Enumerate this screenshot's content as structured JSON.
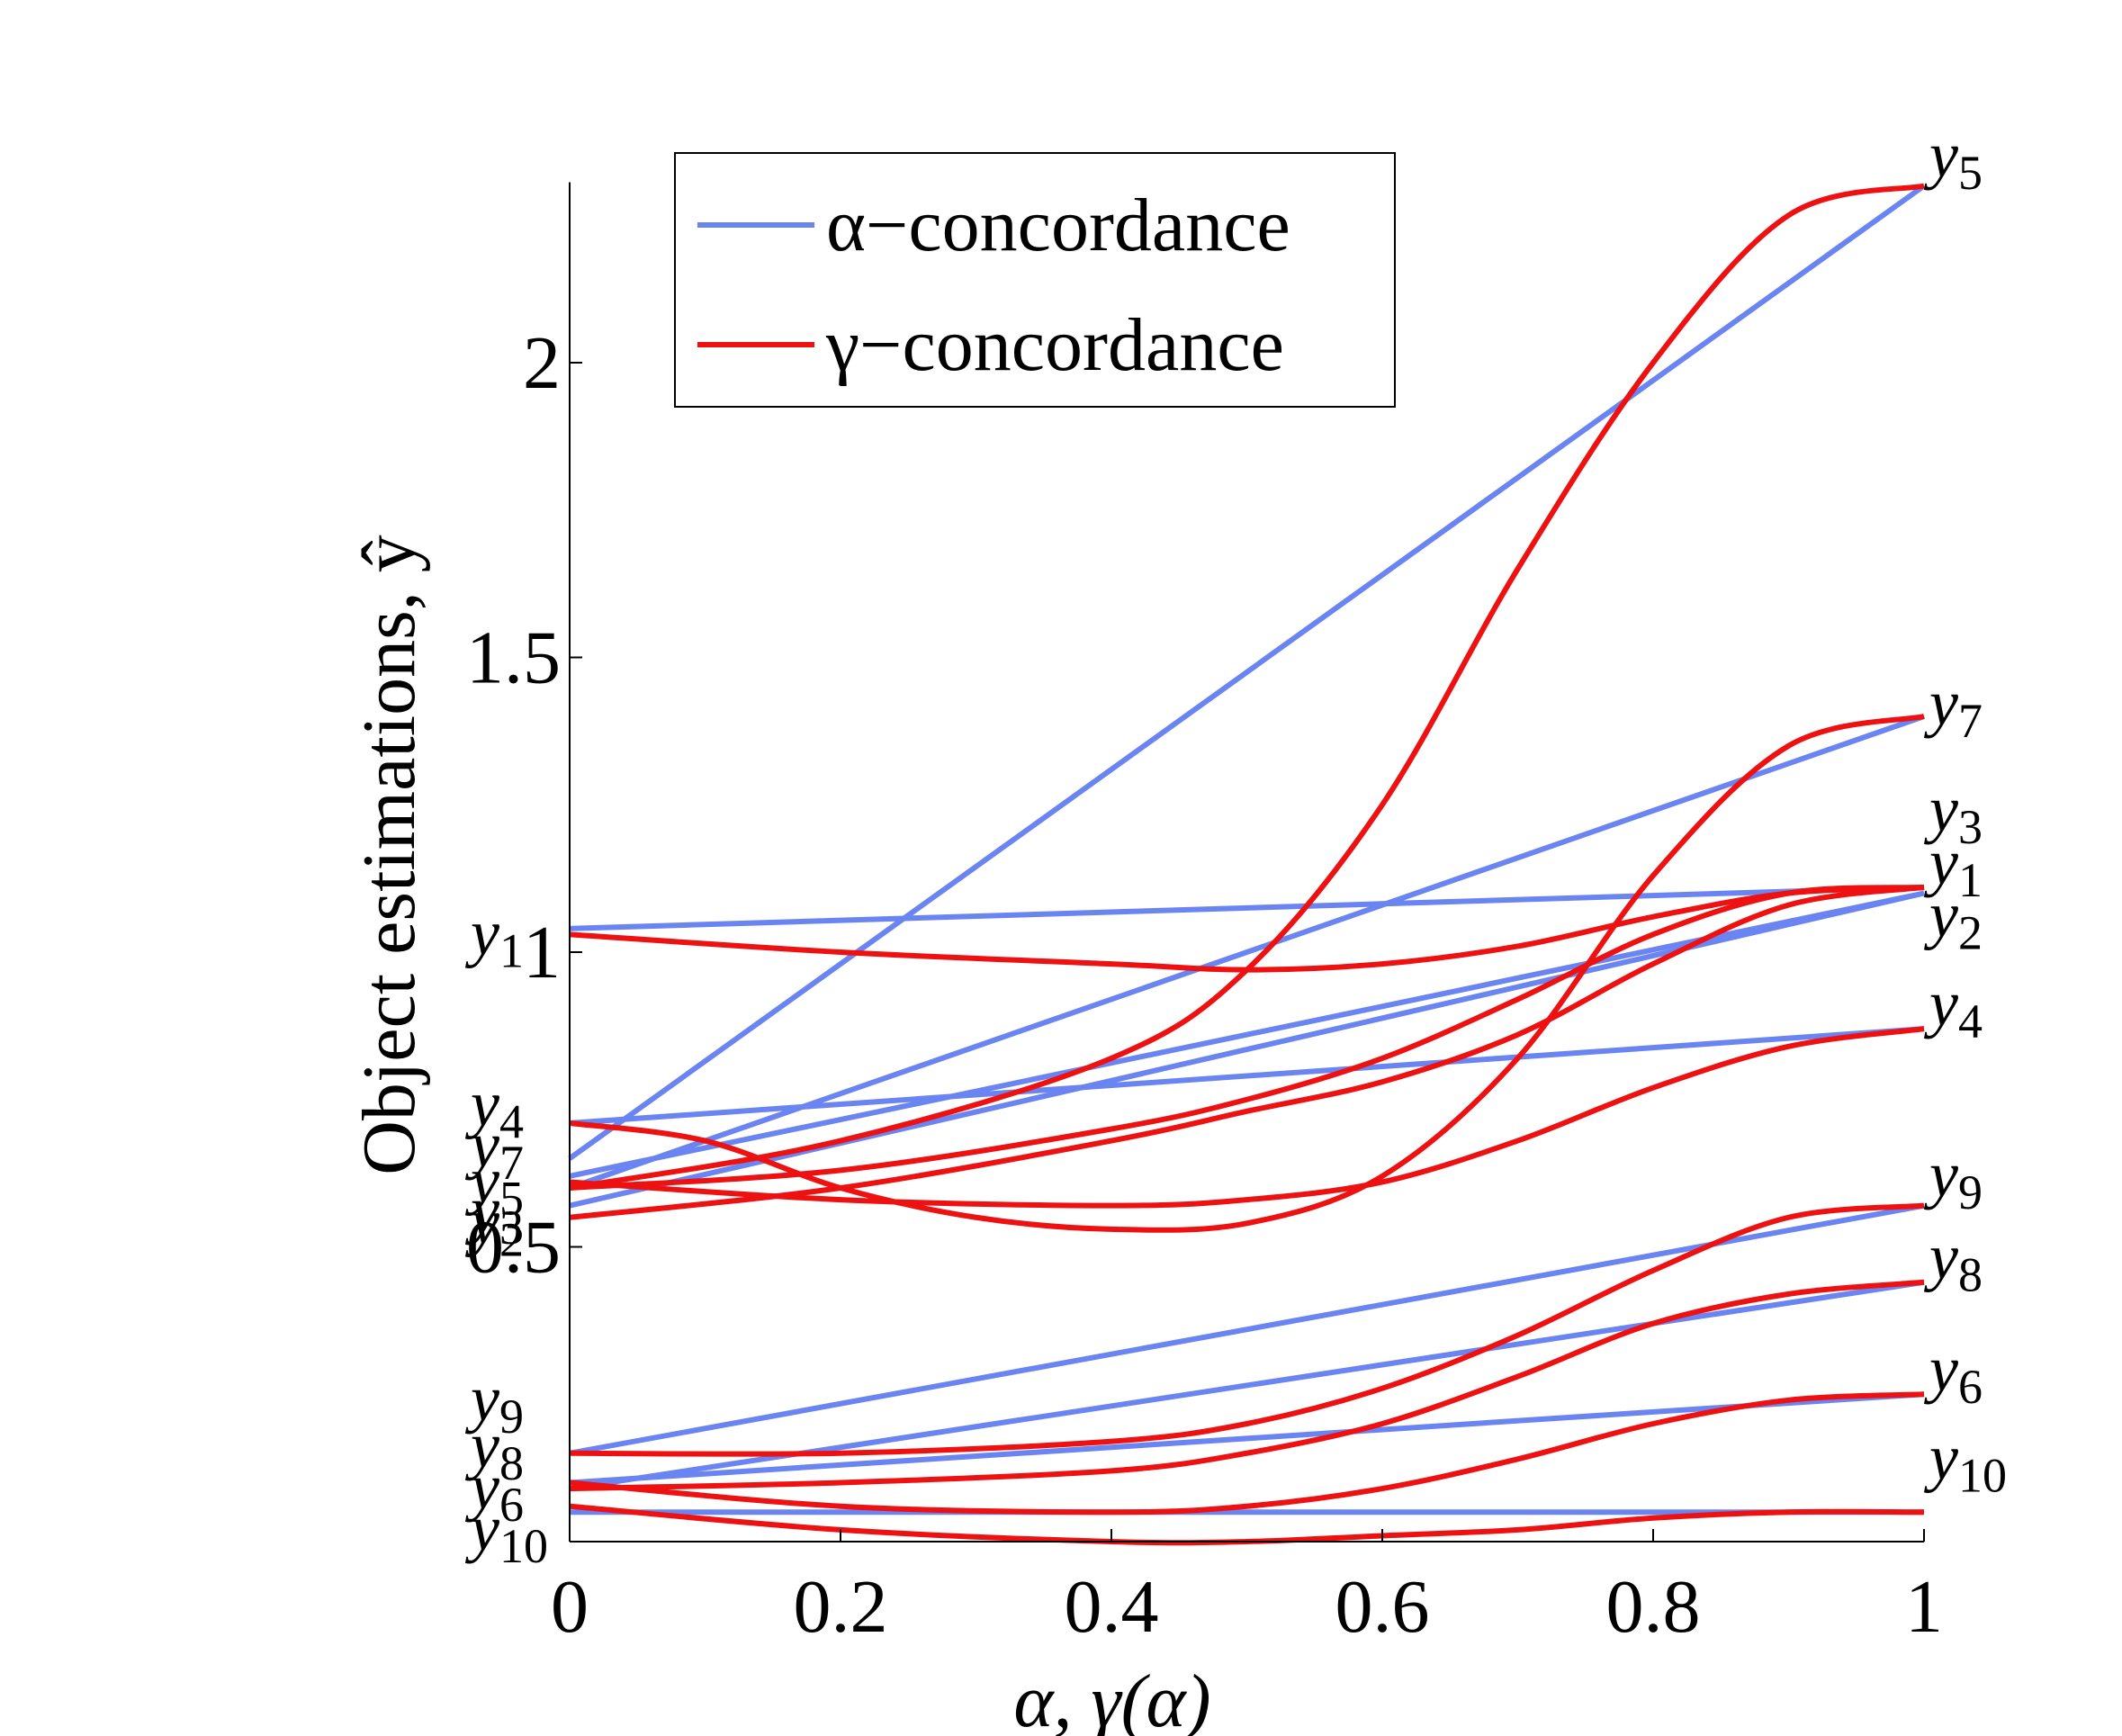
{
  "chart_data": {
    "type": "line",
    "xlabel": "α, γ(α)",
    "ylabel": "Object estimations, ŷ",
    "xlim": [
      0,
      1
    ],
    "ylim": [
      0,
      2.3
    ],
    "xticks": [
      "0",
      "0.2",
      "0.4",
      "0.6",
      "0.8",
      "1"
    ],
    "yticks": [
      "0.5",
      "1",
      "1.5",
      "2"
    ],
    "grid": false,
    "legend": {
      "placement": "top-left",
      "entries": [
        {
          "label": "α−concordance",
          "color": "#6a84f2"
        },
        {
          "label": "γ−concordance",
          "color": "#ee1111"
        }
      ]
    },
    "colors": {
      "alpha": "#6a84f2",
      "gamma": "#ee1111"
    },
    "left_labels": [
      {
        "base": "y",
        "sub": "1",
        "y": 1.03
      },
      {
        "base": "y",
        "sub": "4",
        "y": 0.74
      },
      {
        "base": "y",
        "sub": "7",
        "y": 0.67
      },
      {
        "base": "y",
        "sub": "5",
        "y": 0.61
      },
      {
        "base": "y",
        "sub": "3",
        "y": 0.56
      },
      {
        "base": "y",
        "sub": "2",
        "y": 0.54
      },
      {
        "base": "y",
        "sub": "9",
        "y": 0.24
      },
      {
        "base": "y",
        "sub": "8",
        "y": 0.16
      },
      {
        "base": "y",
        "sub": "6",
        "y": 0.09
      },
      {
        "base": "y",
        "sub": "10",
        "y": 0.02
      }
    ],
    "right_labels": [
      {
        "base": "y",
        "sub": "5",
        "y": 2.35
      },
      {
        "base": "y",
        "sub": "7",
        "y": 1.42
      },
      {
        "base": "y",
        "sub": "3",
        "y": 1.24
      },
      {
        "base": "y",
        "sub": "1",
        "y": 1.15
      },
      {
        "base": "y",
        "sub": "2",
        "y": 1.06
      },
      {
        "base": "y",
        "sub": "4",
        "y": 0.91
      },
      {
        "base": "y",
        "sub": "9",
        "y": 0.62
      },
      {
        "base": "y",
        "sub": "8",
        "y": 0.48
      },
      {
        "base": "y",
        "sub": "6",
        "y": 0.29
      },
      {
        "base": "y",
        "sub": "10",
        "y": 0.14
      }
    ],
    "series": [
      {
        "kind": "alpha",
        "object": "y5",
        "x": [
          0,
          1
        ],
        "y": [
          0.65,
          2.3
        ]
      },
      {
        "kind": "alpha",
        "object": "y7",
        "x": [
          0,
          1
        ],
        "y": [
          0.6,
          1.4
        ]
      },
      {
        "kind": "alpha",
        "object": "y1",
        "x": [
          0,
          1
        ],
        "y": [
          1.04,
          1.11
        ]
      },
      {
        "kind": "alpha",
        "object": "y3",
        "x": [
          0,
          1
        ],
        "y": [
          0.57,
          1.1
        ]
      },
      {
        "kind": "alpha",
        "object": "y2",
        "x": [
          0,
          1
        ],
        "y": [
          0.62,
          1.1
        ]
      },
      {
        "kind": "alpha",
        "object": "y4",
        "x": [
          0,
          1
        ],
        "y": [
          0.71,
          0.87
        ]
      },
      {
        "kind": "alpha",
        "object": "y9",
        "x": [
          0,
          1
        ],
        "y": [
          0.15,
          0.57
        ]
      },
      {
        "kind": "alpha",
        "object": "y8",
        "x": [
          0,
          1
        ],
        "y": [
          0.09,
          0.44
        ]
      },
      {
        "kind": "alpha",
        "object": "y6",
        "x": [
          0,
          1
        ],
        "y": [
          0.1,
          0.25
        ]
      },
      {
        "kind": "alpha",
        "object": "y10",
        "x": [
          0,
          1
        ],
        "y": [
          0.05,
          0.05
        ]
      },
      {
        "kind": "gamma",
        "object": "y5",
        "x": [
          0,
          0.2,
          0.4,
          0.5,
          0.6,
          0.7,
          0.8,
          0.9,
          1.0
        ],
        "y": [
          0.6,
          0.68,
          0.82,
          0.97,
          1.25,
          1.65,
          2.0,
          2.25,
          2.3
        ]
      },
      {
        "kind": "gamma",
        "object": "y7",
        "x": [
          0,
          0.1,
          0.2,
          0.3,
          0.4,
          0.5,
          0.6,
          0.7,
          0.8,
          0.9,
          1.0
        ],
        "y": [
          0.71,
          0.68,
          0.6,
          0.55,
          0.53,
          0.54,
          0.62,
          0.82,
          1.13,
          1.35,
          1.4
        ]
      },
      {
        "kind": "gamma",
        "object": "y1",
        "x": [
          0,
          0.2,
          0.4,
          0.5,
          0.6,
          0.7,
          0.8,
          0.9,
          1.0
        ],
        "y": [
          1.03,
          1.0,
          0.98,
          0.97,
          0.98,
          1.01,
          1.06,
          1.1,
          1.11
        ]
      },
      {
        "kind": "gamma",
        "object": "y3",
        "x": [
          0,
          0.2,
          0.4,
          0.5,
          0.6,
          0.7,
          0.8,
          0.9,
          1.0
        ],
        "y": [
          0.6,
          0.63,
          0.7,
          0.75,
          0.82,
          0.92,
          1.03,
          1.1,
          1.11
        ]
      },
      {
        "kind": "gamma",
        "object": "y2",
        "x": [
          0,
          0.2,
          0.4,
          0.5,
          0.6,
          0.7,
          0.8,
          0.9,
          1.0
        ],
        "y": [
          0.55,
          0.6,
          0.68,
          0.73,
          0.78,
          0.86,
          0.98,
          1.08,
          1.11
        ]
      },
      {
        "kind": "gamma",
        "object": "y9",
        "x": [
          0,
          0.2,
          0.4,
          0.5,
          0.6,
          0.7,
          0.8,
          0.9,
          1.0
        ],
        "y": [
          0.61,
          0.58,
          0.57,
          0.58,
          0.61,
          0.68,
          0.77,
          0.84,
          0.87
        ]
      },
      {
        "kind": "gamma",
        "object": "y4",
        "x": [
          0,
          0.2,
          0.4,
          0.5,
          0.6,
          0.7,
          0.8,
          0.9,
          1.0
        ],
        "y": [
          0.15,
          0.15,
          0.17,
          0.2,
          0.26,
          0.35,
          0.46,
          0.55,
          0.57
        ]
      },
      {
        "kind": "gamma",
        "object": "y8",
        "x": [
          0,
          0.2,
          0.4,
          0.5,
          0.6,
          0.7,
          0.8,
          0.9,
          1.0
        ],
        "y": [
          0.09,
          0.1,
          0.12,
          0.15,
          0.2,
          0.28,
          0.37,
          0.42,
          0.44
        ]
      },
      {
        "kind": "gamma",
        "object": "y6",
        "x": [
          0,
          0.2,
          0.4,
          0.5,
          0.6,
          0.7,
          0.8,
          0.9,
          1.0
        ],
        "y": [
          0.1,
          0.06,
          0.05,
          0.06,
          0.09,
          0.14,
          0.2,
          0.24,
          0.25
        ]
      },
      {
        "kind": "gamma",
        "object": "y10",
        "x": [
          0,
          0.2,
          0.4,
          0.5,
          0.6,
          0.7,
          0.8,
          0.9,
          1.0
        ],
        "y": [
          0.06,
          0.02,
          0.0,
          0.0,
          0.01,
          0.02,
          0.04,
          0.05,
          0.05
        ]
      }
    ]
  }
}
